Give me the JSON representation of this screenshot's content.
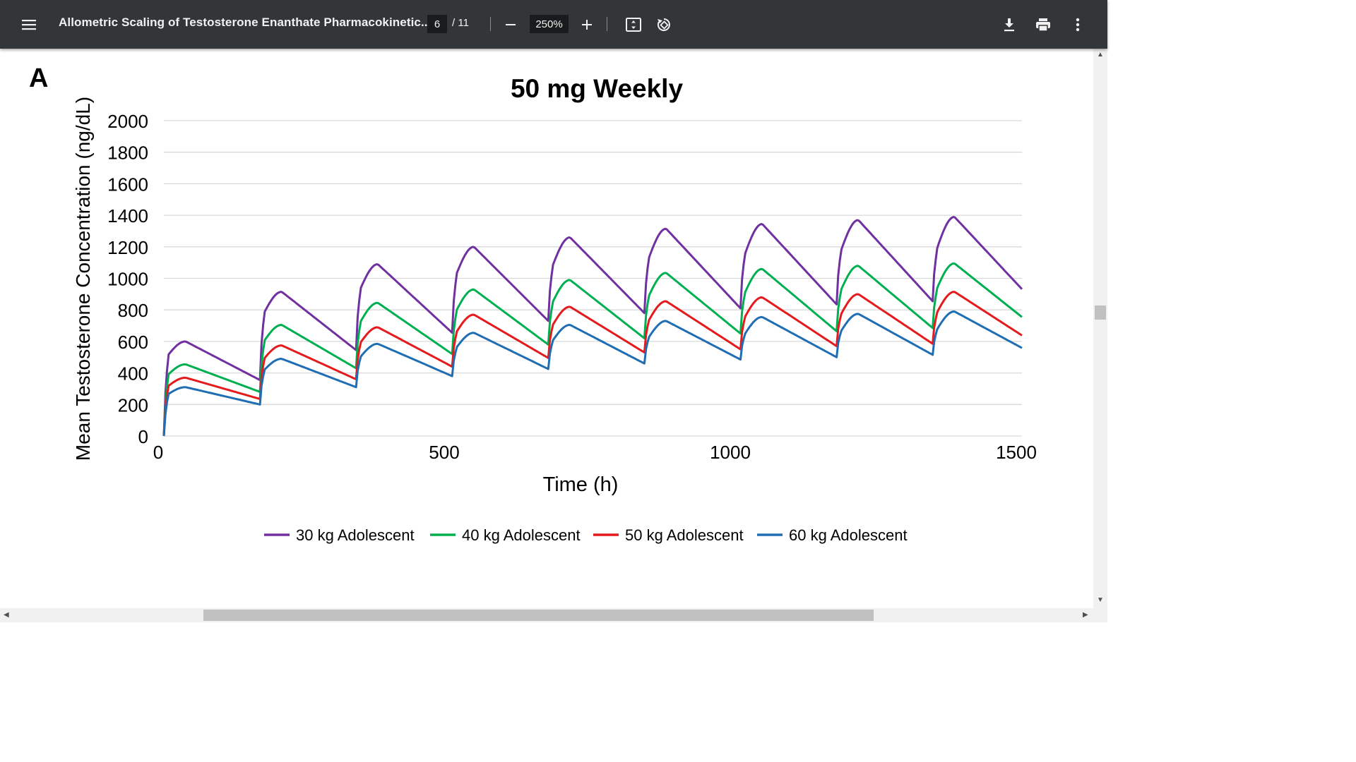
{
  "toolbar": {
    "document_title": "Allometric Scaling of Testosterone Enanthate Pharmacokinetic...",
    "current_page": "6",
    "total_pages": "/ 11",
    "zoom": "250%",
    "icons": {
      "menu": "menu-icon",
      "zoom_out": "minus-icon",
      "zoom_in": "plus-icon",
      "fit": "fit-page-icon",
      "rotate": "rotate-icon",
      "download": "download-icon",
      "print": "print-icon",
      "more": "more-vert-icon"
    }
  },
  "figure": {
    "panel_label": "A"
  },
  "chart_data": {
    "type": "line",
    "title": "50 mg Weekly",
    "xlabel": "Time (h)",
    "ylabel": "Mean Testosterone Concentration (ng/dL)",
    "xlim": [
      0,
      1500
    ],
    "ylim": [
      0,
      2000
    ],
    "xticks": [
      "0",
      "500",
      "1000",
      "1500"
    ],
    "yticks": [
      "0",
      "200",
      "400",
      "600",
      "800",
      "1000",
      "1200",
      "1400",
      "1600",
      "1800",
      "2000"
    ],
    "grid": "horizontal",
    "legend_position": "bottom",
    "dose_interval_h": 168,
    "series": [
      {
        "name": "30 kg Adolescent",
        "color": "#7030a0",
        "peaks": [
          600,
          915,
          1090,
          1200,
          1260,
          1315,
          1345,
          1370,
          1390
        ],
        "troughs": [
          355,
          545,
          655,
          730,
          780,
          810,
          835,
          855
        ]
      },
      {
        "name": "40 kg Adolescent",
        "color": "#00b050",
        "peaks": [
          455,
          705,
          845,
          930,
          990,
          1035,
          1060,
          1080,
          1095
        ],
        "troughs": [
          280,
          430,
          520,
          580,
          620,
          650,
          665,
          685
        ]
      },
      {
        "name": "50 kg Adolescent",
        "color": "#e41a1c",
        "peaks": [
          370,
          575,
          690,
          770,
          820,
          855,
          880,
          900,
          915
        ],
        "troughs": [
          235,
          360,
          440,
          495,
          530,
          550,
          570,
          585
        ]
      },
      {
        "name": "60 kg Adolescent",
        "color": "#1f6eb3",
        "peaks": [
          310,
          490,
          585,
          655,
          705,
          730,
          755,
          775,
          790
        ],
        "troughs": [
          200,
          310,
          380,
          425,
          460,
          485,
          500,
          515
        ]
      }
    ],
    "end_values": [
      885,
      720,
      610,
      535
    ]
  }
}
